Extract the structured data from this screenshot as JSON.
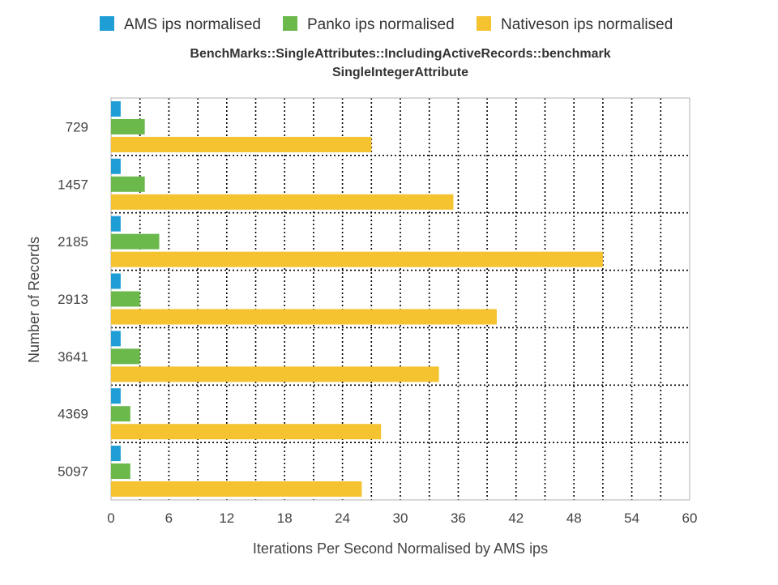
{
  "chart_data": {
    "type": "bar",
    "orientation": "horizontal",
    "title": "BenchMarks::SingleAttributes::IncludingActiveRecords::benchmark",
    "subtitle": "SingleIntegerAttribute",
    "xlabel": "Iterations Per Second Normalised by AMS ips",
    "ylabel": "Number of Records",
    "categories": [
      "729",
      "1457",
      "2185",
      "2913",
      "3641",
      "4369",
      "5097"
    ],
    "xlim": [
      0,
      60
    ],
    "xticks": [
      "0",
      "6",
      "12",
      "18",
      "24",
      "30",
      "36",
      "42",
      "48",
      "54",
      "60"
    ],
    "grid": true,
    "legend_position": "top",
    "series": [
      {
        "name": "AMS ips normalised",
        "color": "#1f9ed6",
        "values": [
          1,
          1,
          1,
          1,
          1,
          1,
          1
        ]
      },
      {
        "name": "Panko ips normalised",
        "color": "#6bb84b",
        "values": [
          3.5,
          3.5,
          5,
          3,
          3,
          2,
          2
        ]
      },
      {
        "name": "Nativeson ips normalised",
        "color": "#f5c230",
        "values": [
          27,
          35.5,
          51,
          40,
          34,
          28,
          26
        ]
      }
    ]
  }
}
